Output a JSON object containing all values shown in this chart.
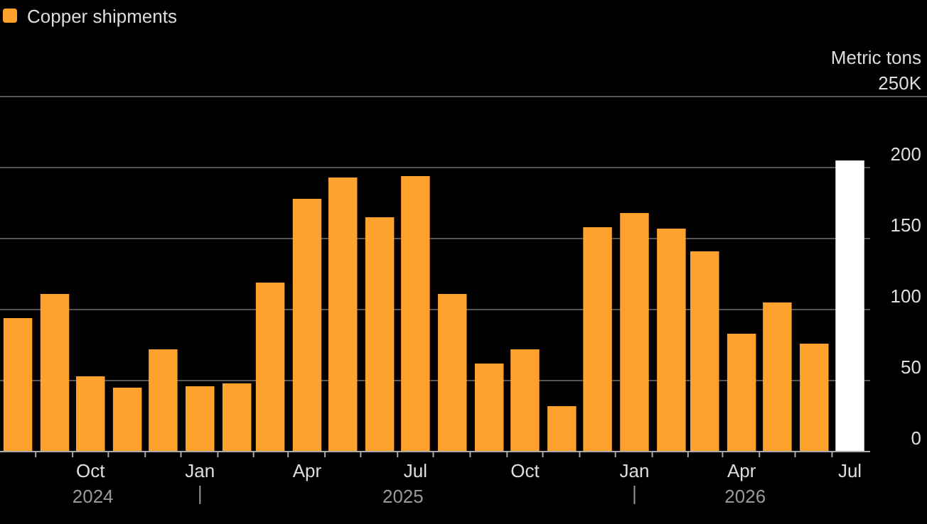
{
  "chart_data": {
    "type": "bar",
    "ylabel": "Metric tons",
    "legend": "top left",
    "x": [
      "2024-08",
      "2024-09",
      "2024-10",
      "2024-11",
      "2024-12",
      "2025-01",
      "2025-02",
      "2025-03",
      "2025-04",
      "2025-05",
      "2025-06",
      "2025-07",
      "2025-08",
      "2025-09",
      "2025-10",
      "2025-11",
      "2025-12",
      "2026-01",
      "2026-02",
      "2026-03",
      "2026-04",
      "2026-05",
      "2026-06",
      "2026-07"
    ],
    "series": [
      {
        "name": "Copper shipments",
        "color": "#ffa12d",
        "values": [
          94,
          111,
          53,
          45,
          72,
          46,
          48,
          119,
          178,
          193,
          165,
          194,
          111,
          62,
          72,
          32,
          158,
          168,
          157,
          141,
          83,
          105,
          76,
          205
        ],
        "colors": [
          "#ffa12d",
          "#ffa12d",
          "#ffa12d",
          "#ffa12d",
          "#ffa12d",
          "#ffa12d",
          "#ffa12d",
          "#ffa12d",
          "#ffa12d",
          "#ffa12d",
          "#ffa12d",
          "#ffa12d",
          "#ffa12d",
          "#ffa12d",
          "#ffa12d",
          "#ffa12d",
          "#ffa12d",
          "#ffa12d",
          "#ffa12d",
          "#ffa12d",
          "#ffa12d",
          "#ffa12d",
          "#ffa12d",
          "#ffffff"
        ]
      }
    ],
    "xlim": [
      "2024-07-17",
      "2026-07-18"
    ],
    "xticks": [
      {
        "value": "2024-08-16",
        "label": null
      },
      {
        "value": "2024-09-16",
        "label": null
      },
      {
        "value": "2024-10",
        "label": "Oct"
      },
      {
        "value": "2024-10-16",
        "label": null
      },
      {
        "value": "2024-11-16",
        "label": null
      },
      {
        "value": "2024-12-16",
        "label": null
      },
      {
        "value": "2025-01",
        "label": "Jan"
      },
      {
        "value": "2025-01-16",
        "label": null
      },
      {
        "value": "2025-02-15",
        "label": null
      },
      {
        "value": "2025-03-16",
        "label": null
      },
      {
        "value": "2025-04",
        "label": "Apr"
      },
      {
        "value": "2025-04-16",
        "label": null
      },
      {
        "value": "2025-05-16",
        "label": null
      },
      {
        "value": "2025-06-16",
        "label": null
      },
      {
        "value": "2025-07",
        "label": "Jul"
      },
      {
        "value": "2025-07-16",
        "label": null
      },
      {
        "value": "2025-08-16",
        "label": null
      },
      {
        "value": "2025-09-16",
        "label": null
      },
      {
        "value": "2025-10",
        "label": "Oct"
      },
      {
        "value": "2025-10-16",
        "label": null
      },
      {
        "value": "2025-11-16",
        "label": null
      },
      {
        "value": "2025-12-16",
        "label": null
      },
      {
        "value": "2026-01",
        "label": "Jan"
      },
      {
        "value": "2026-01-16",
        "label": null
      },
      {
        "value": "2026-02-15",
        "label": null
      },
      {
        "value": "2026-03-16",
        "label": null
      },
      {
        "value": "2026-04",
        "label": "Apr"
      },
      {
        "value": "2026-04-16",
        "label": null
      },
      {
        "value": "2026-05-16",
        "label": null
      },
      {
        "value": "2026-06-16",
        "label": null
      },
      {
        "value": "2026-07",
        "label": "Jul"
      }
    ],
    "ylim": [
      0,
      250
    ],
    "yticks": [
      0,
      50,
      100,
      150,
      200,
      {
        "value": 250,
        "label": "250K"
      }
    ],
    "grid": "y",
    "annotations": [
      "2024",
      "2025",
      "2026"
    ]
  }
}
